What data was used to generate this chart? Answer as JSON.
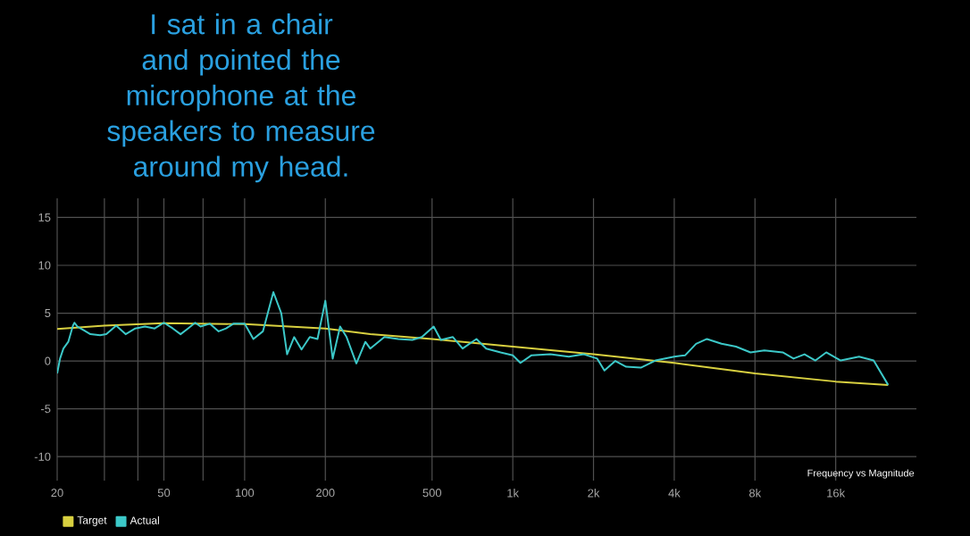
{
  "chart_data": {
    "type": "line",
    "title": "I sat in a chair and pointed the microphone at the speakers to measure around my head.",
    "annotations": [
      "Frequency vs Magnitude"
    ],
    "log": "x",
    "grid": true,
    "legend": "bottom left",
    "xlim": [
      20,
      32000
    ],
    "ylim": [
      -12.5,
      17
    ],
    "xticks": [
      20,
      {
        "value": 30,
        "label": null
      },
      {
        "value": 40,
        "label": null
      },
      50,
      {
        "value": 70,
        "label": null
      },
      100,
      200,
      500,
      {
        "value": 1000,
        "label": "1k"
      },
      {
        "value": 2000,
        "label": "2k"
      },
      {
        "value": 4000,
        "label": "4k"
      },
      {
        "value": 8000,
        "label": "8k"
      },
      {
        "value": 16000,
        "label": "16k"
      }
    ],
    "yticks": [
      -10,
      -5,
      0,
      5,
      10,
      15
    ],
    "series": [
      {
        "name": "Target",
        "color": "#d8d040",
        "x": [
          20,
          30,
          50,
          100,
          200,
          294,
          500,
          1000,
          2000,
          4000,
          8000,
          16000,
          25100
        ],
        "values": [
          3.35,
          3.7,
          3.95,
          3.85,
          3.4,
          2.8,
          2.3,
          1.5,
          0.7,
          -0.2,
          -1.3,
          -2.15,
          -2.5
        ]
      },
      {
        "name": "Actual",
        "color": "#3cc8c8",
        "x": [
          20,
          20.5,
          21.1,
          22,
          22.9,
          23.2,
          23.8,
          25.2,
          26.6,
          28.9,
          30.5,
          33.2,
          36,
          39.1,
          42.5,
          46.2,
          50,
          54,
          57.7,
          61.5,
          65.4,
          68.5,
          74.1,
          80,
          85.3,
          90.8,
          100,
          107.8,
          117,
          128,
          137,
          144,
          153,
          163,
          175,
          187,
          200,
          213,
          227,
          240,
          261,
          282,
          294,
          332,
          374,
          422,
          458,
          507,
          539,
          598,
          650,
          732,
          796,
          901,
          1000,
          1068,
          1175,
          1380,
          1618,
          1840,
          2064,
          2196,
          2412,
          2648,
          3003,
          3402,
          4000,
          4396,
          4825,
          5296,
          6000,
          6800,
          7700,
          8670,
          10150,
          11140,
          12240,
          13440,
          14750,
          16700,
          19560,
          22160,
          25100
        ],
        "values": [
          -1.3,
          0.25,
          1.3,
          2.0,
          3.7,
          4.0,
          3.6,
          3.2,
          2.8,
          2.7,
          2.8,
          3.7,
          2.8,
          3.4,
          3.6,
          3.4,
          4.0,
          3.4,
          2.8,
          3.4,
          4.0,
          3.6,
          3.9,
          3.1,
          3.4,
          3.9,
          3.9,
          2.3,
          3.1,
          7.2,
          5.0,
          0.7,
          2.5,
          1.2,
          2.5,
          2.3,
          6.3,
          0.25,
          3.6,
          2.5,
          -0.25,
          2.0,
          1.3,
          2.5,
          2.3,
          2.2,
          2.5,
          3.6,
          2.2,
          2.5,
          1.3,
          2.3,
          1.3,
          0.9,
          0.6,
          -0.2,
          0.6,
          0.7,
          0.45,
          0.7,
          0.25,
          -1.0,
          0,
          -0.6,
          -0.7,
          0.05,
          0.45,
          0.6,
          1.8,
          2.3,
          1.8,
          1.5,
          0.9,
          1.1,
          0.9,
          0.25,
          0.7,
          0.05,
          0.9,
          0.05,
          0.45,
          0.05,
          -2.5
        ]
      }
    ]
  }
}
